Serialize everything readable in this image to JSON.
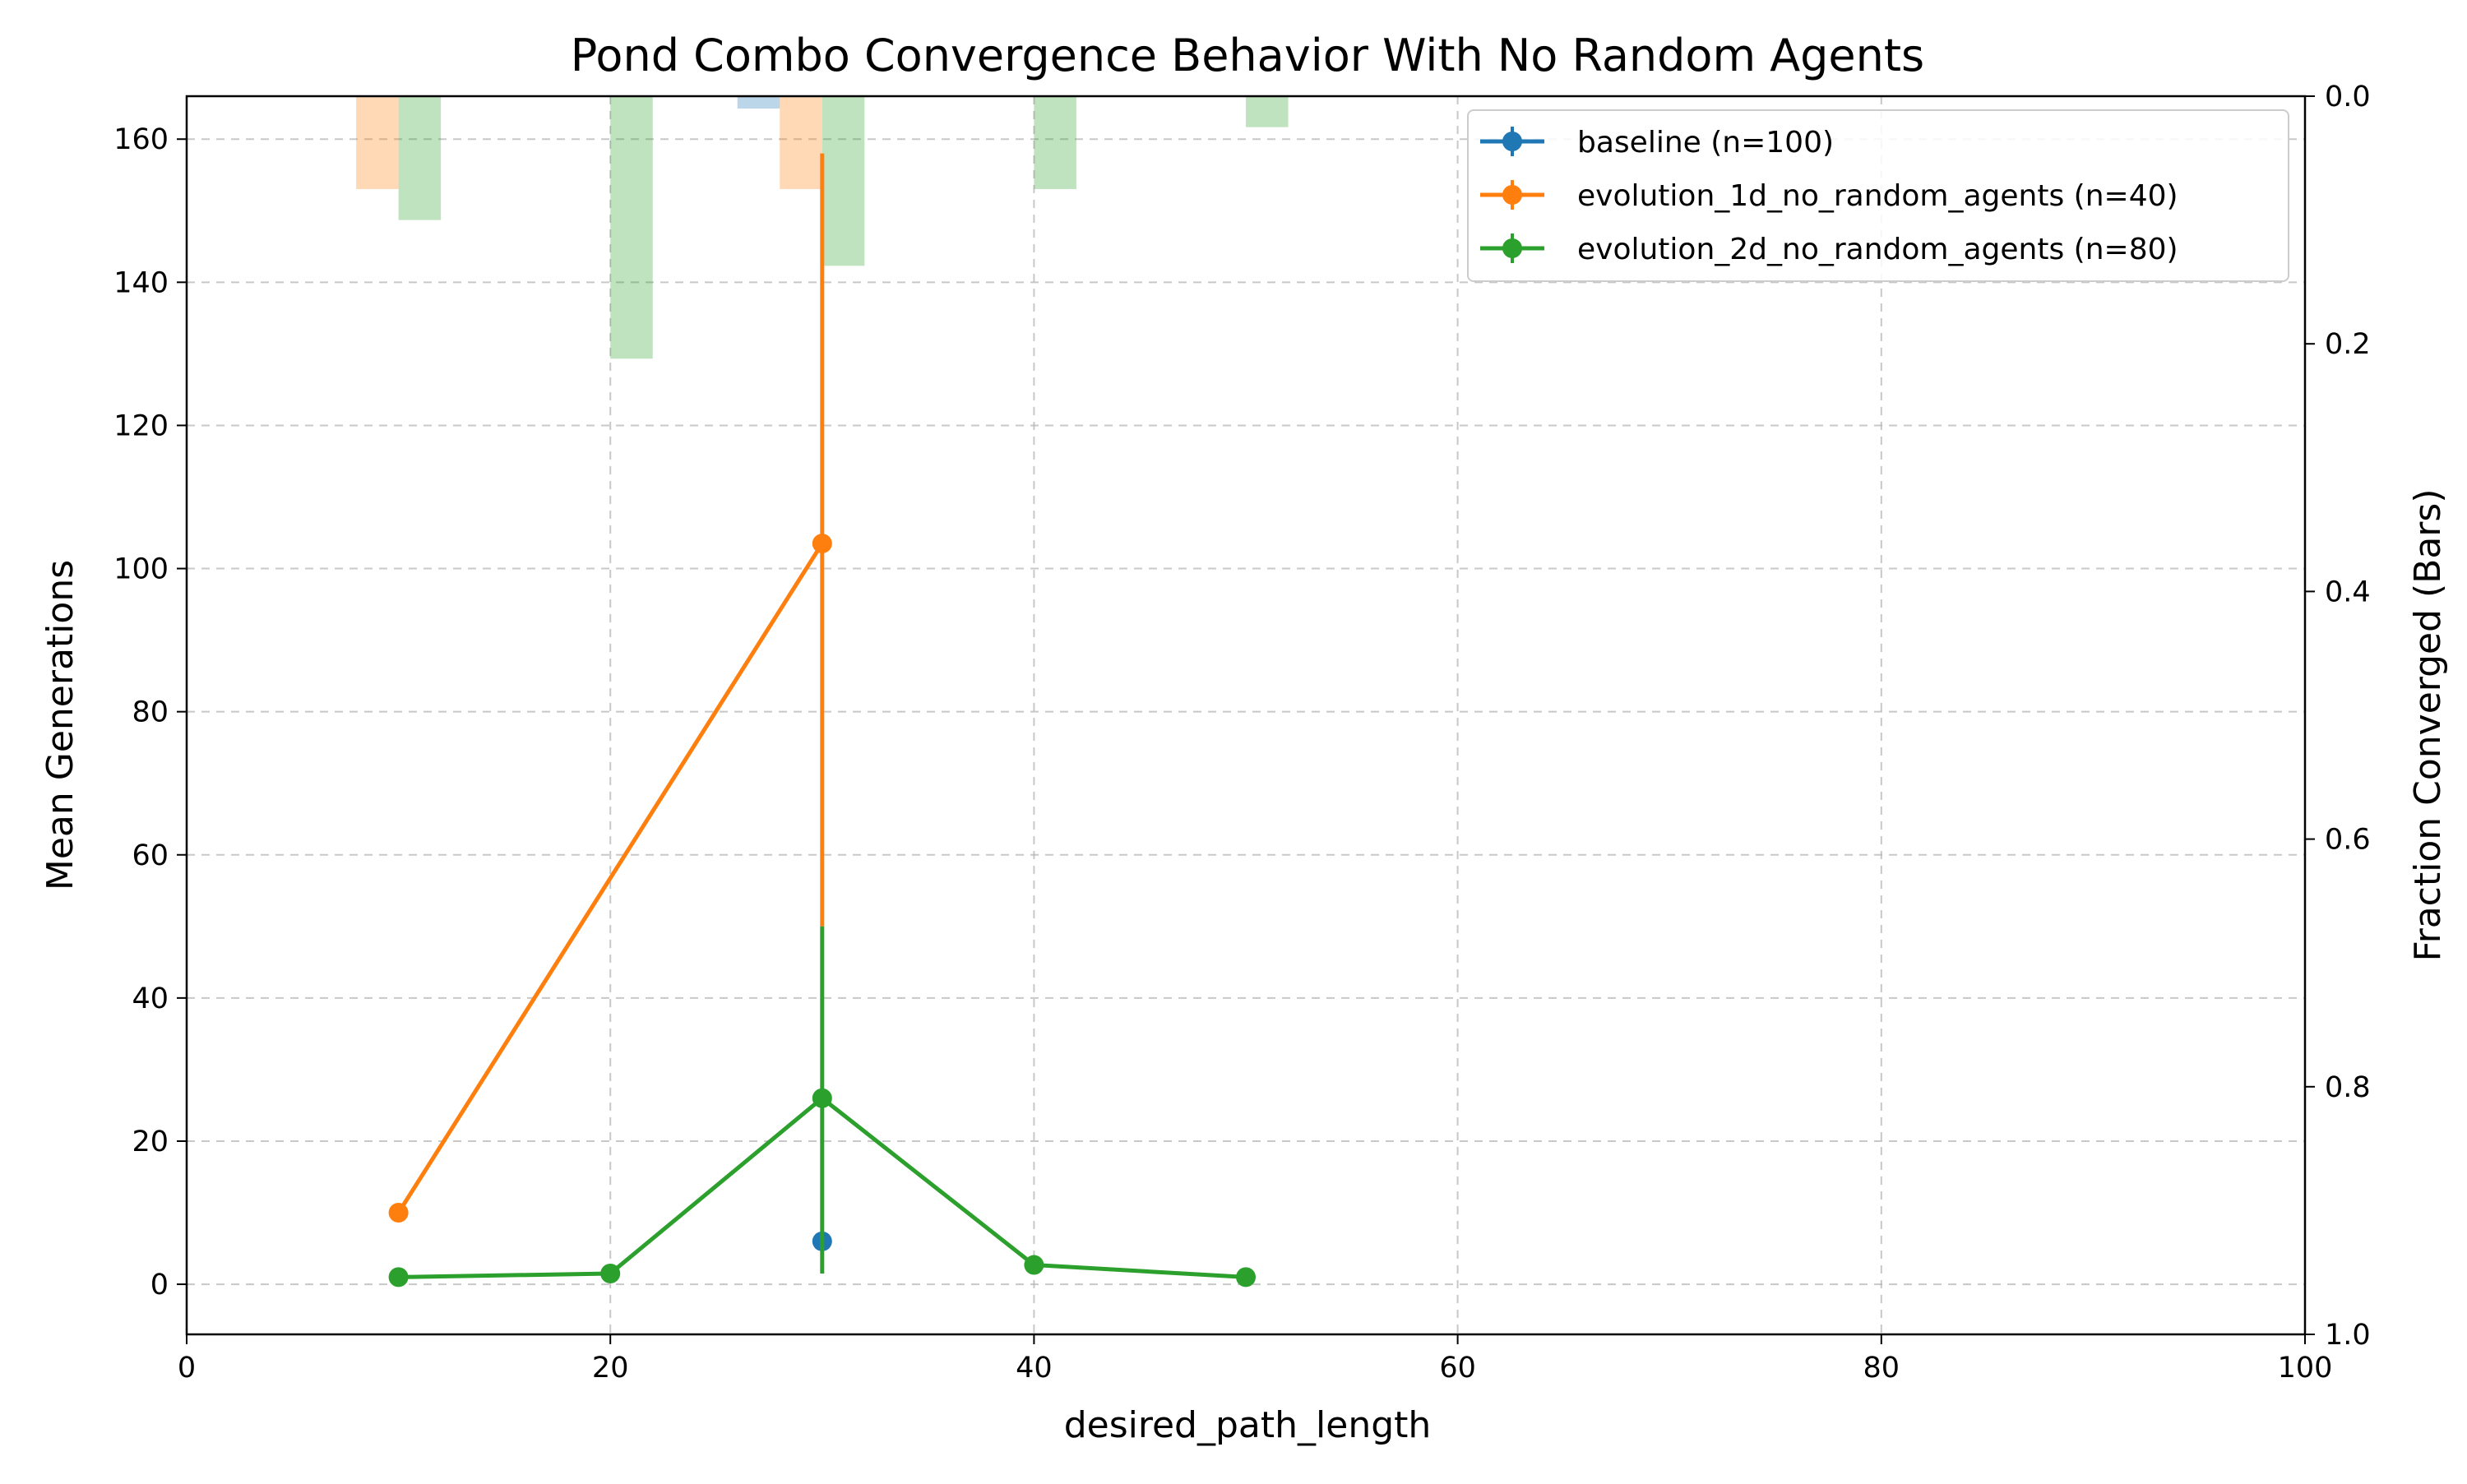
{
  "chart_data": {
    "type": "line",
    "title": "Pond Combo Convergence Behavior With No Random Agents",
    "xlabel": "desired_path_length",
    "ylabel": "Mean Generations",
    "y2label": "Fraction Converged (Bars)",
    "xlim": [
      0,
      100
    ],
    "ylim": [
      -7,
      166
    ],
    "y2lim": [
      1.0,
      0.0
    ],
    "xticks": [
      "0",
      "20",
      "40",
      "60",
      "80",
      "100"
    ],
    "yticks": [
      "0",
      "20",
      "40",
      "60",
      "80",
      "100",
      "120",
      "140",
      "160"
    ],
    "y2ticks": [
      "0.0",
      "0.2",
      "0.4",
      "0.6",
      "0.8",
      "1.0"
    ],
    "grid": true,
    "legend_position": "top-right",
    "series": [
      {
        "name": "baseline (n=100)",
        "color": "#1f77b4",
        "points": [
          {
            "x": 30,
            "y": 6,
            "err_low": 6,
            "err_high": 6
          }
        ],
        "bars": [
          {
            "x": 27,
            "fraction": 0.01
          }
        ]
      },
      {
        "name": "evolution_1d_no_random_agents (n=40)",
        "color": "#ff7f0e",
        "points": [
          {
            "x": 10,
            "y": 10,
            "err_low": 10,
            "err_high": 10
          },
          {
            "x": 30,
            "y": 103.5,
            "err_low": 50,
            "err_high": 158
          }
        ],
        "bars": [
          {
            "x": 9,
            "fraction": 0.075
          },
          {
            "x": 29,
            "fraction": 0.075
          }
        ]
      },
      {
        "name": "evolution_2d_no_random_agents (n=80)",
        "color": "#2ca02c",
        "points": [
          {
            "x": 10,
            "y": 1,
            "err_low": 1,
            "err_high": 1
          },
          {
            "x": 20,
            "y": 1.5,
            "err_low": 1.5,
            "err_high": 1.5
          },
          {
            "x": 30,
            "y": 26,
            "err_low": 1.5,
            "err_high": 50
          },
          {
            "x": 40,
            "y": 2.7,
            "err_low": 2.7,
            "err_high": 2.7
          },
          {
            "x": 50,
            "y": 1,
            "err_low": 1,
            "err_high": 1
          }
        ],
        "bars": [
          {
            "x": 11,
            "fraction": 0.1
          },
          {
            "x": 21,
            "fraction": 0.212
          },
          {
            "x": 31,
            "fraction": 0.137
          },
          {
            "x": 41,
            "fraction": 0.075
          },
          {
            "x": 51,
            "fraction": 0.025
          }
        ]
      }
    ]
  }
}
